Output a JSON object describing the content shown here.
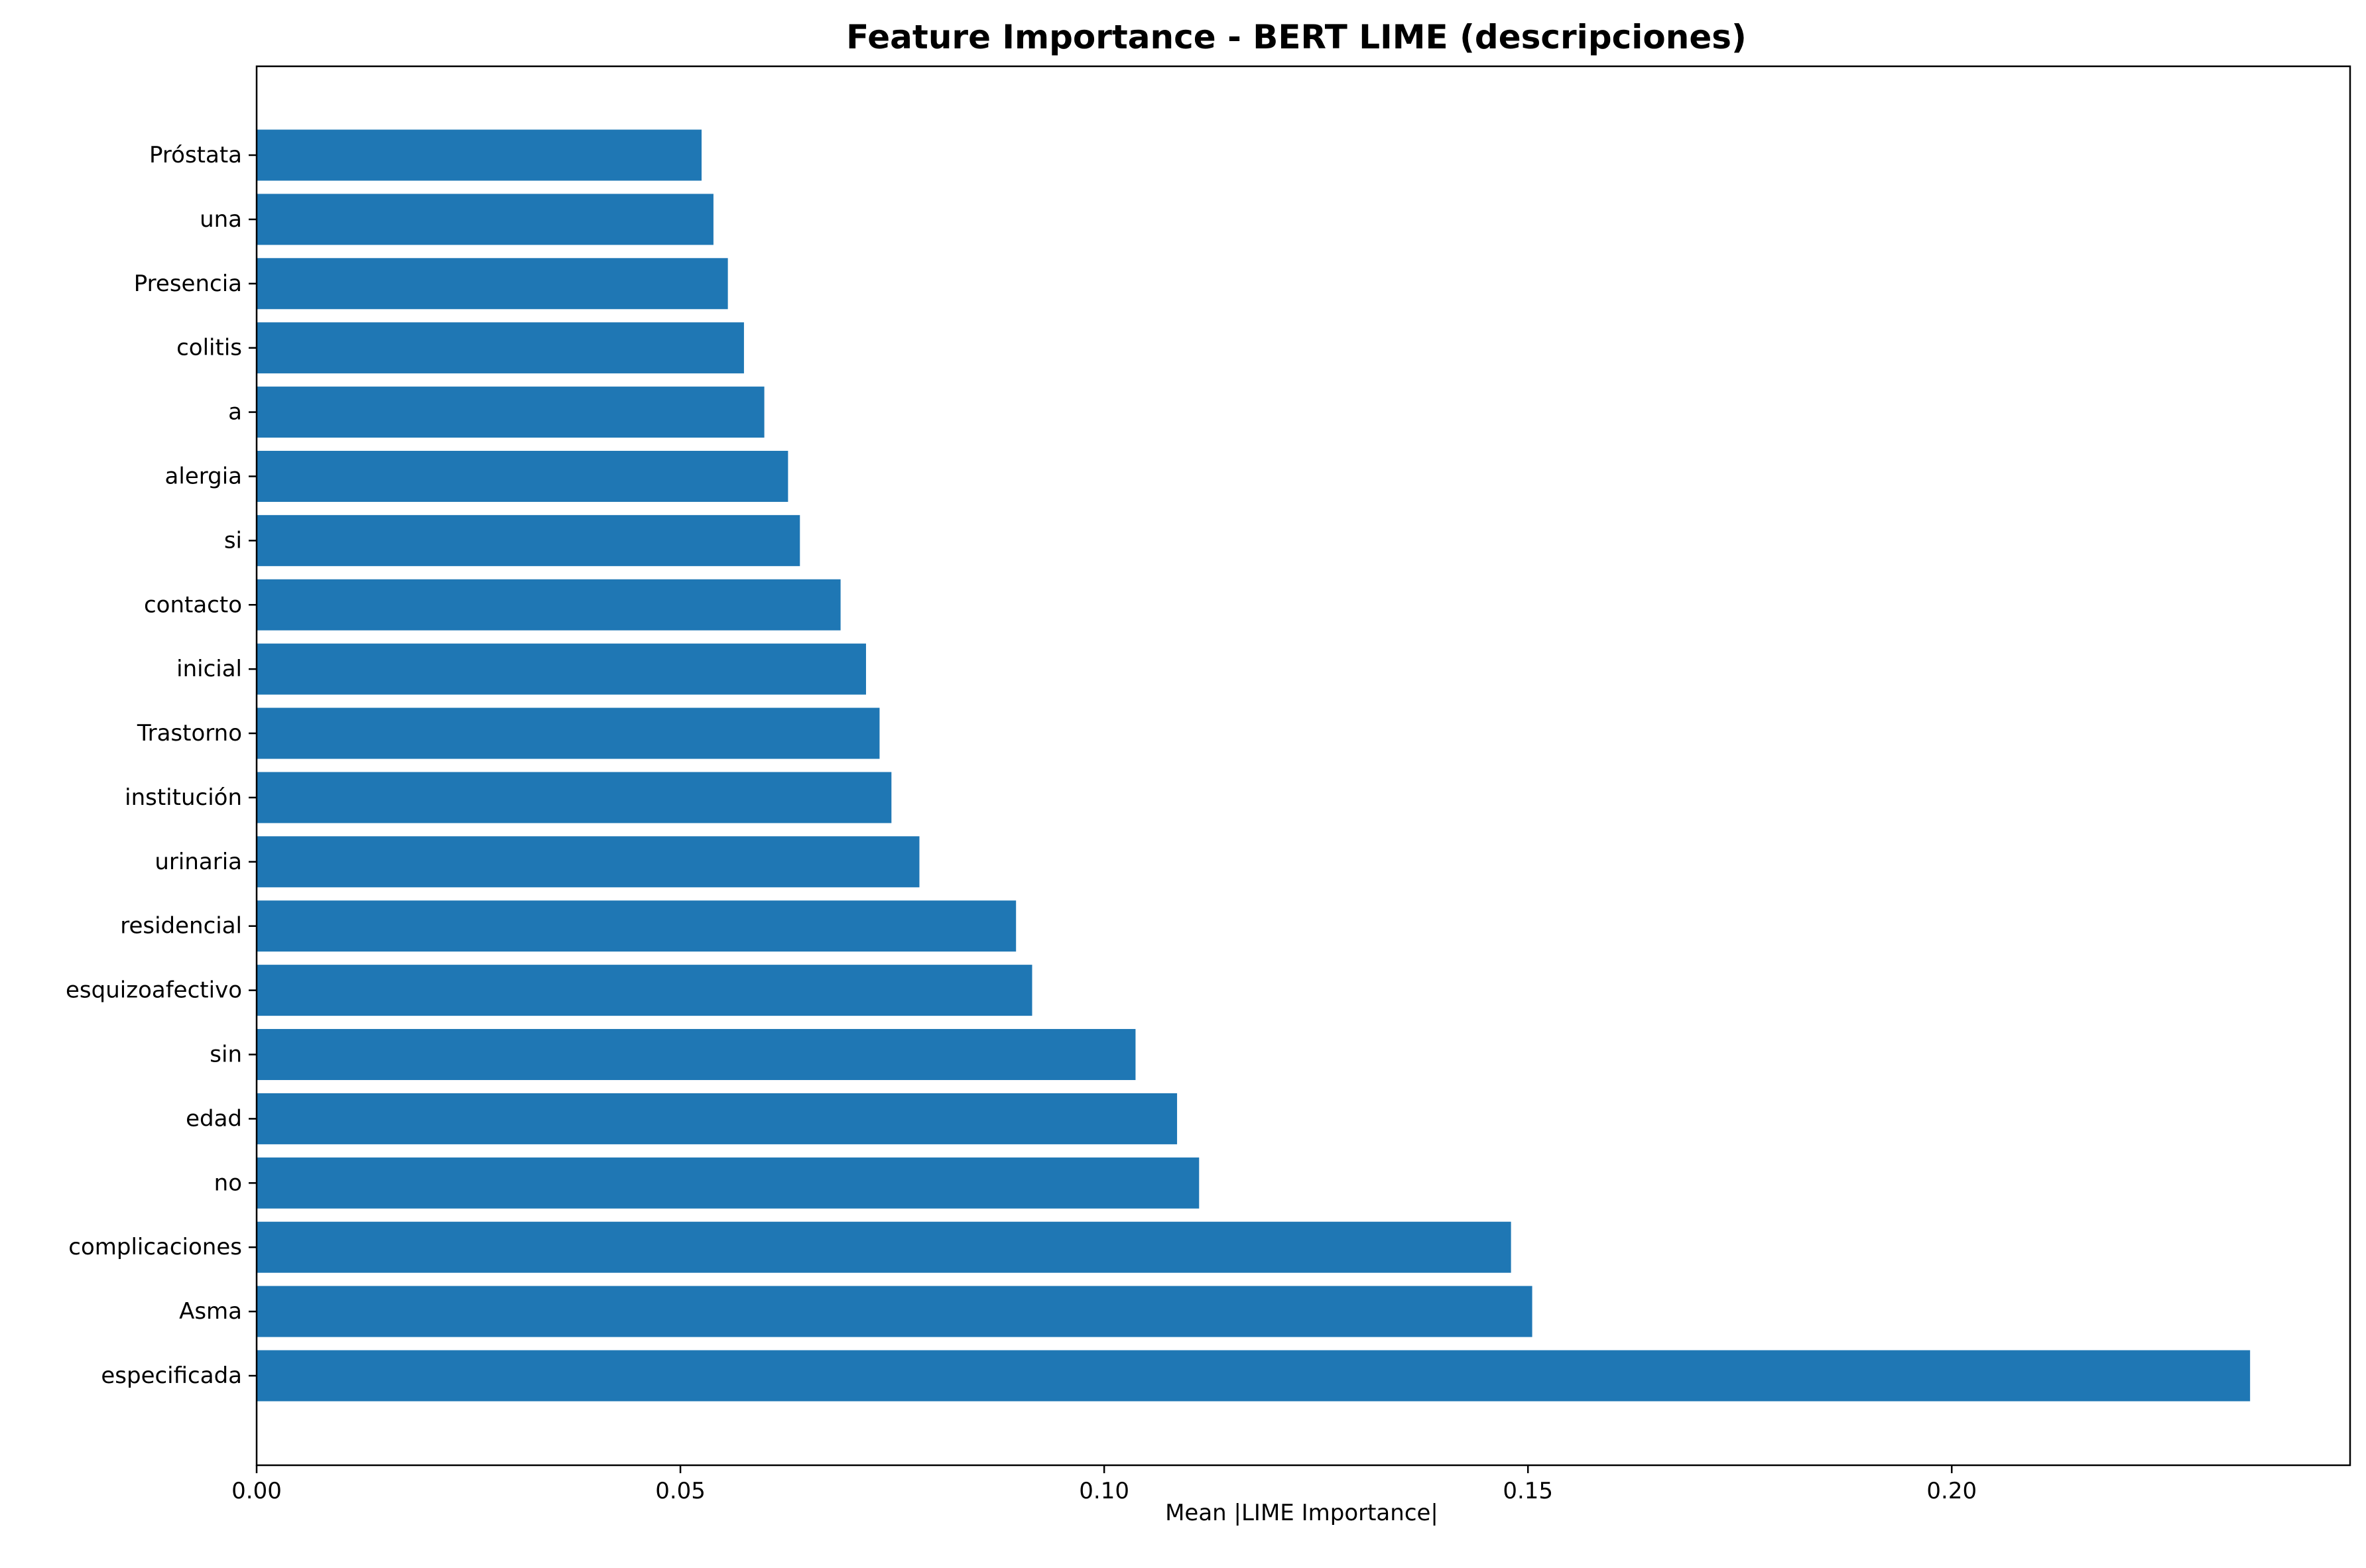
{
  "chart_data": {
    "type": "bar",
    "orientation": "horizontal",
    "title": "Feature Importance - BERT LIME (descripciones)",
    "xlabel": "Mean |LIME Importance|",
    "ylabel": "",
    "xlim": [
      0,
      0.247
    ],
    "xticks": [
      "0.00",
      "0.05",
      "0.10",
      "0.15",
      "0.20"
    ],
    "xtick_values": [
      0,
      0.05,
      0.1,
      0.15,
      0.2
    ],
    "grid": false,
    "bar_color": "#1f77b4",
    "categories": [
      "especificada",
      "Asma",
      "complicaciones",
      "no",
      "edad",
      "sin",
      "esquizoafectivo",
      "residencial",
      "urinaria",
      "institución",
      "Trastorno",
      "inicial",
      "contacto",
      "si",
      "alergia",
      "a",
      "colitis",
      "Presencia",
      "una",
      "Próstata"
    ],
    "values": [
      0.2352,
      0.1505,
      0.148,
      0.1112,
      0.1086,
      0.1037,
      0.0915,
      0.0896,
      0.0782,
      0.0749,
      0.0735,
      0.0719,
      0.0689,
      0.0641,
      0.0627,
      0.0599,
      0.0575,
      0.0556,
      0.0539,
      0.0525
    ]
  }
}
